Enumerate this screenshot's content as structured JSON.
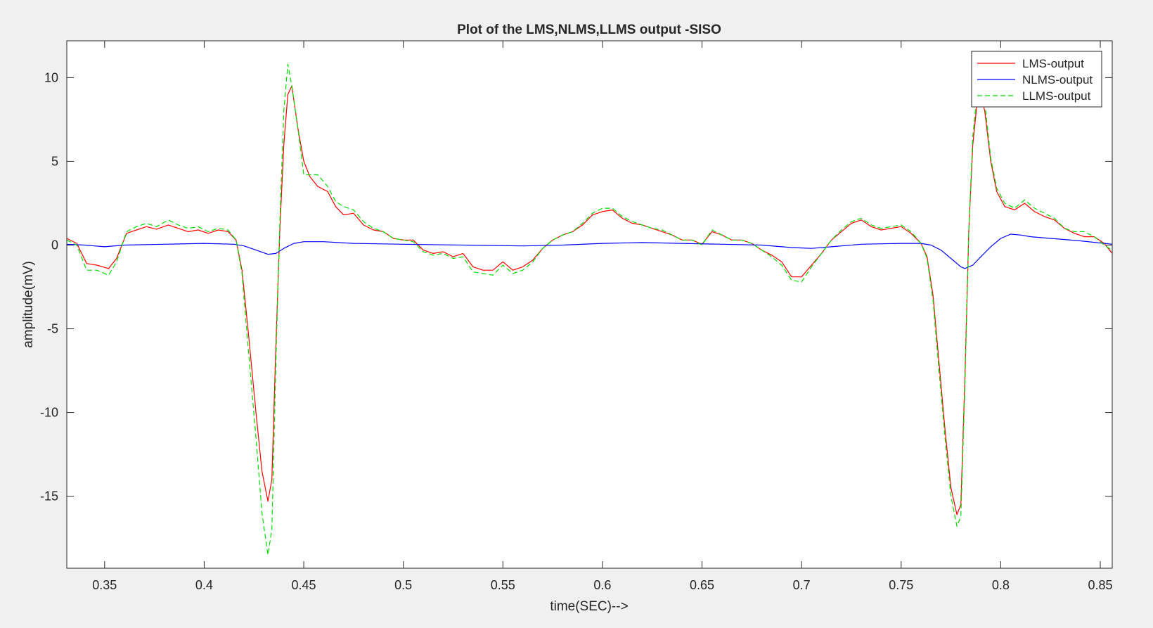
{
  "chart_data": {
    "type": "line",
    "title": "Plot of the LMS,NLMS,LLMS output -SISO",
    "xlabel": "time(SEC)-->",
    "ylabel": "amplitude(mV)",
    "xlim": [
      0.331,
      0.856
    ],
    "ylim": [
      -19.3,
      12.2
    ],
    "xticks": [
      0.35,
      0.4,
      0.45,
      0.5,
      0.55,
      0.6,
      0.65,
      0.7,
      0.75,
      0.8,
      0.85
    ],
    "xtick_labels": [
      "0.35",
      "0.4",
      "0.45",
      "0.5",
      "0.55",
      "0.6",
      "0.65",
      "0.7",
      "0.75",
      "0.8",
      "0.85"
    ],
    "yticks": [
      10,
      5,
      0,
      -5,
      -10,
      -15
    ],
    "ytick_labels": [
      "10",
      "5",
      "0",
      "-5",
      "-10",
      "-15"
    ],
    "grid": false,
    "legend_position": "top-right",
    "series": [
      {
        "name": "LMS-output",
        "color": "#ff0000",
        "style": "solid",
        "points": [
          [
            0.331,
            0.4
          ],
          [
            0.336,
            0.1
          ],
          [
            0.341,
            -1.1
          ],
          [
            0.346,
            -1.2
          ],
          [
            0.352,
            -1.4
          ],
          [
            0.356,
            -0.8
          ],
          [
            0.361,
            0.7
          ],
          [
            0.366,
            0.9
          ],
          [
            0.371,
            1.1
          ],
          [
            0.376,
            0.95
          ],
          [
            0.382,
            1.2
          ],
          [
            0.387,
            1.0
          ],
          [
            0.392,
            0.8
          ],
          [
            0.397,
            0.9
          ],
          [
            0.402,
            0.7
          ],
          [
            0.407,
            0.9
          ],
          [
            0.412,
            0.8
          ],
          [
            0.416,
            0.3
          ],
          [
            0.419,
            -1.5
          ],
          [
            0.422,
            -5
          ],
          [
            0.426,
            -10
          ],
          [
            0.429,
            -13.5
          ],
          [
            0.432,
            -15.3
          ],
          [
            0.434,
            -14
          ],
          [
            0.436,
            -6
          ],
          [
            0.438,
            1
          ],
          [
            0.44,
            6
          ],
          [
            0.442,
            9.0
          ],
          [
            0.444,
            9.5
          ],
          [
            0.447,
            7
          ],
          [
            0.45,
            5
          ],
          [
            0.453,
            4.1
          ],
          [
            0.457,
            3.5
          ],
          [
            0.462,
            3.2
          ],
          [
            0.466,
            2.3
          ],
          [
            0.47,
            1.8
          ],
          [
            0.475,
            1.9
          ],
          [
            0.48,
            1.2
          ],
          [
            0.485,
            0.9
          ],
          [
            0.49,
            0.8
          ],
          [
            0.495,
            0.4
          ],
          [
            0.5,
            0.3
          ],
          [
            0.505,
            0.3
          ],
          [
            0.51,
            -0.3
          ],
          [
            0.515,
            -0.5
          ],
          [
            0.52,
            -0.4
          ],
          [
            0.525,
            -0.7
          ],
          [
            0.53,
            -0.5
          ],
          [
            0.535,
            -1.3
          ],
          [
            0.54,
            -1.5
          ],
          [
            0.545,
            -1.5
          ],
          [
            0.55,
            -1.0
          ],
          [
            0.555,
            -1.5
          ],
          [
            0.56,
            -1.3
          ],
          [
            0.565,
            -0.9
          ],
          [
            0.57,
            -0.2
          ],
          [
            0.575,
            0.3
          ],
          [
            0.58,
            0.6
          ],
          [
            0.585,
            0.8
          ],
          [
            0.59,
            1.2
          ],
          [
            0.595,
            1.8
          ],
          [
            0.6,
            2.0
          ],
          [
            0.605,
            2.1
          ],
          [
            0.61,
            1.6
          ],
          [
            0.615,
            1.3
          ],
          [
            0.62,
            1.2
          ],
          [
            0.625,
            1.0
          ],
          [
            0.63,
            0.8
          ],
          [
            0.635,
            0.6
          ],
          [
            0.64,
            0.3
          ],
          [
            0.645,
            0.3
          ],
          [
            0.65,
            0.05
          ],
          [
            0.655,
            0.8
          ],
          [
            0.66,
            0.6
          ],
          [
            0.665,
            0.3
          ],
          [
            0.67,
            0.3
          ],
          [
            0.675,
            0.1
          ],
          [
            0.68,
            -0.3
          ],
          [
            0.685,
            -0.6
          ],
          [
            0.69,
            -1.0
          ],
          [
            0.695,
            -1.9
          ],
          [
            0.7,
            -1.9
          ],
          [
            0.705,
            -1.2
          ],
          [
            0.71,
            -0.5
          ],
          [
            0.715,
            0.3
          ],
          [
            0.72,
            0.8
          ],
          [
            0.725,
            1.3
          ],
          [
            0.73,
            1.5
          ],
          [
            0.735,
            1.1
          ],
          [
            0.74,
            0.9
          ],
          [
            0.745,
            1.0
          ],
          [
            0.75,
            1.1
          ],
          [
            0.755,
            0.7
          ],
          [
            0.76,
            0.1
          ],
          [
            0.763,
            -0.7
          ],
          [
            0.766,
            -3
          ],
          [
            0.769,
            -7
          ],
          [
            0.772,
            -11
          ],
          [
            0.775,
            -14.5
          ],
          [
            0.778,
            -16.1
          ],
          [
            0.78,
            -15.5
          ],
          [
            0.782,
            -8
          ],
          [
            0.784,
            1
          ],
          [
            0.786,
            6
          ],
          [
            0.789,
            9.5
          ],
          [
            0.792,
            8
          ],
          [
            0.795,
            5
          ],
          [
            0.798,
            3.2
          ],
          [
            0.802,
            2.3
          ],
          [
            0.807,
            2.1
          ],
          [
            0.812,
            2.5
          ],
          [
            0.817,
            2.0
          ],
          [
            0.822,
            1.7
          ],
          [
            0.827,
            1.5
          ],
          [
            0.832,
            1.0
          ],
          [
            0.837,
            0.7
          ],
          [
            0.842,
            0.5
          ],
          [
            0.847,
            0.5
          ],
          [
            0.852,
            0.1
          ],
          [
            0.856,
            -0.5
          ]
        ]
      },
      {
        "name": "NLMS-output",
        "color": "#0000ff",
        "style": "solid",
        "points": [
          [
            0.331,
            0.05
          ],
          [
            0.34,
            0.0
          ],
          [
            0.35,
            -0.1
          ],
          [
            0.36,
            0.0
          ],
          [
            0.38,
            0.05
          ],
          [
            0.4,
            0.1
          ],
          [
            0.415,
            0.05
          ],
          [
            0.42,
            -0.05
          ],
          [
            0.426,
            -0.3
          ],
          [
            0.432,
            -0.55
          ],
          [
            0.436,
            -0.5
          ],
          [
            0.44,
            -0.2
          ],
          [
            0.445,
            0.1
          ],
          [
            0.45,
            0.2
          ],
          [
            0.46,
            0.2
          ],
          [
            0.475,
            0.1
          ],
          [
            0.5,
            0.05
          ],
          [
            0.53,
            0.0
          ],
          [
            0.56,
            -0.05
          ],
          [
            0.58,
            0.0
          ],
          [
            0.6,
            0.1
          ],
          [
            0.62,
            0.15
          ],
          [
            0.64,
            0.1
          ],
          [
            0.66,
            0.05
          ],
          [
            0.68,
            0.0
          ],
          [
            0.695,
            -0.15
          ],
          [
            0.705,
            -0.2
          ],
          [
            0.715,
            -0.1
          ],
          [
            0.73,
            0.05
          ],
          [
            0.75,
            0.1
          ],
          [
            0.76,
            0.1
          ],
          [
            0.765,
            0.0
          ],
          [
            0.77,
            -0.3
          ],
          [
            0.775,
            -0.8
          ],
          [
            0.78,
            -1.3
          ],
          [
            0.782,
            -1.4
          ],
          [
            0.786,
            -1.2
          ],
          [
            0.79,
            -0.7
          ],
          [
            0.795,
            -0.1
          ],
          [
            0.8,
            0.4
          ],
          [
            0.805,
            0.65
          ],
          [
            0.81,
            0.6
          ],
          [
            0.815,
            0.5
          ],
          [
            0.825,
            0.4
          ],
          [
            0.84,
            0.25
          ],
          [
            0.856,
            0.05
          ]
        ]
      },
      {
        "name": "LLMS-output",
        "color": "#00dd00",
        "style": "dashed",
        "points": [
          [
            0.331,
            0.3
          ],
          [
            0.336,
            0.0
          ],
          [
            0.341,
            -1.5
          ],
          [
            0.346,
            -1.5
          ],
          [
            0.352,
            -1.8
          ],
          [
            0.356,
            -1.0
          ],
          [
            0.361,
            0.8
          ],
          [
            0.366,
            1.1
          ],
          [
            0.371,
            1.3
          ],
          [
            0.376,
            1.1
          ],
          [
            0.382,
            1.5
          ],
          [
            0.387,
            1.2
          ],
          [
            0.392,
            1.0
          ],
          [
            0.397,
            1.1
          ],
          [
            0.402,
            0.8
          ],
          [
            0.407,
            1.0
          ],
          [
            0.412,
            0.9
          ],
          [
            0.416,
            0.3
          ],
          [
            0.419,
            -1.7
          ],
          [
            0.422,
            -6
          ],
          [
            0.426,
            -11.5
          ],
          [
            0.429,
            -16
          ],
          [
            0.432,
            -18.5
          ],
          [
            0.434,
            -17
          ],
          [
            0.436,
            -7
          ],
          [
            0.438,
            1.5
          ],
          [
            0.44,
            8
          ],
          [
            0.442,
            10.8
          ],
          [
            0.444,
            9.5
          ],
          [
            0.447,
            7
          ],
          [
            0.45,
            4.2
          ],
          [
            0.453,
            4.2
          ],
          [
            0.457,
            4.2
          ],
          [
            0.462,
            3.5
          ],
          [
            0.466,
            2.6
          ],
          [
            0.47,
            2.3
          ],
          [
            0.475,
            2.1
          ],
          [
            0.48,
            1.4
          ],
          [
            0.485,
            1.0
          ],
          [
            0.49,
            0.8
          ],
          [
            0.495,
            0.4
          ],
          [
            0.5,
            0.3
          ],
          [
            0.505,
            0.2
          ],
          [
            0.51,
            -0.4
          ],
          [
            0.515,
            -0.6
          ],
          [
            0.52,
            -0.5
          ],
          [
            0.525,
            -0.8
          ],
          [
            0.53,
            -0.7
          ],
          [
            0.535,
            -1.6
          ],
          [
            0.54,
            -1.7
          ],
          [
            0.545,
            -1.8
          ],
          [
            0.55,
            -1.2
          ],
          [
            0.555,
            -1.7
          ],
          [
            0.56,
            -1.5
          ],
          [
            0.565,
            -1.0
          ],
          [
            0.57,
            -0.2
          ],
          [
            0.575,
            0.3
          ],
          [
            0.58,
            0.6
          ],
          [
            0.585,
            0.8
          ],
          [
            0.59,
            1.3
          ],
          [
            0.595,
            1.9
          ],
          [
            0.6,
            2.2
          ],
          [
            0.605,
            2.2
          ],
          [
            0.61,
            1.7
          ],
          [
            0.615,
            1.4
          ],
          [
            0.62,
            1.2
          ],
          [
            0.625,
            1.0
          ],
          [
            0.63,
            0.9
          ],
          [
            0.635,
            0.6
          ],
          [
            0.64,
            0.3
          ],
          [
            0.645,
            0.3
          ],
          [
            0.65,
            0.0
          ],
          [
            0.655,
            0.9
          ],
          [
            0.66,
            0.6
          ],
          [
            0.665,
            0.3
          ],
          [
            0.67,
            0.3
          ],
          [
            0.675,
            0.1
          ],
          [
            0.68,
            -0.3
          ],
          [
            0.685,
            -0.7
          ],
          [
            0.69,
            -1.2
          ],
          [
            0.695,
            -2.1
          ],
          [
            0.7,
            -2.2
          ],
          [
            0.705,
            -1.3
          ],
          [
            0.71,
            -0.5
          ],
          [
            0.715,
            0.3
          ],
          [
            0.72,
            0.9
          ],
          [
            0.725,
            1.4
          ],
          [
            0.73,
            1.6
          ],
          [
            0.735,
            1.2
          ],
          [
            0.74,
            1.0
          ],
          [
            0.745,
            1.1
          ],
          [
            0.75,
            1.2
          ],
          [
            0.755,
            0.8
          ],
          [
            0.76,
            0.1
          ],
          [
            0.763,
            -0.8
          ],
          [
            0.766,
            -3.3
          ],
          [
            0.769,
            -7.5
          ],
          [
            0.772,
            -11.5
          ],
          [
            0.775,
            -15
          ],
          [
            0.778,
            -16.8
          ],
          [
            0.78,
            -16.2
          ],
          [
            0.782,
            -8.5
          ],
          [
            0.784,
            1
          ],
          [
            0.786,
            6.5
          ],
          [
            0.789,
            10
          ],
          [
            0.792,
            8.5
          ],
          [
            0.795,
            5.2
          ],
          [
            0.798,
            3.4
          ],
          [
            0.802,
            2.5
          ],
          [
            0.807,
            2.2
          ],
          [
            0.812,
            2.7
          ],
          [
            0.817,
            2.2
          ],
          [
            0.822,
            1.9
          ],
          [
            0.827,
            1.6
          ],
          [
            0.832,
            1.0
          ],
          [
            0.837,
            0.8
          ],
          [
            0.842,
            0.8
          ],
          [
            0.847,
            0.5
          ],
          [
            0.852,
            0.0
          ],
          [
            0.856,
            -0.3
          ]
        ]
      }
    ]
  }
}
